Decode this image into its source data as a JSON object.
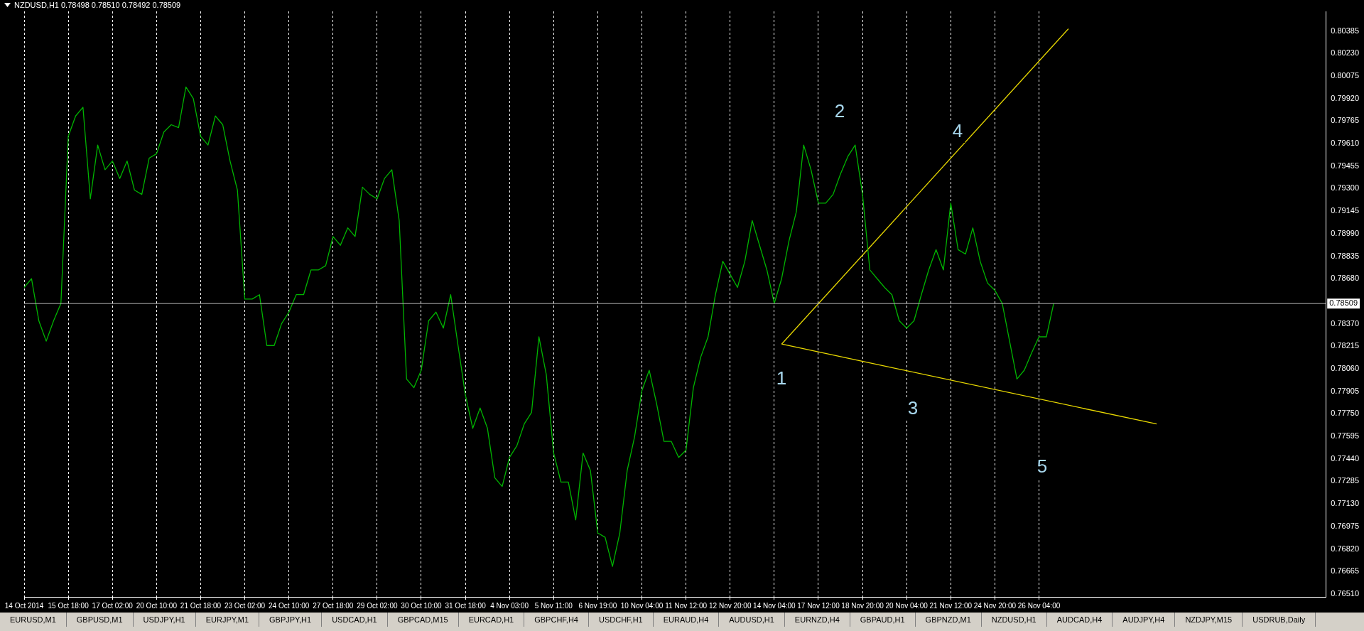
{
  "chart_data": {
    "type": "line",
    "title": "NZDUSD,H1  0.78498 0.78510 0.78492 0.78509",
    "categories": [
      "14 Oct 2014",
      null,
      null,
      null,
      null,
      null,
      "15 Oct 18:00",
      null,
      null,
      null,
      null,
      null,
      "17 Oct 02:00",
      null,
      null,
      null,
      null,
      null,
      "20 Oct 10:00",
      null,
      null,
      null,
      null,
      null,
      "21 Oct 18:00",
      null,
      null,
      null,
      null,
      null,
      "23 Oct 02:00",
      null,
      null,
      null,
      null,
      null,
      "24 Oct 10:00",
      null,
      null,
      null,
      null,
      null,
      "27 Oct 18:00",
      null,
      null,
      null,
      null,
      null,
      "29 Oct 02:00",
      null,
      null,
      null,
      null,
      null,
      "30 Oct 10:00",
      null,
      null,
      null,
      null,
      null,
      "31 Oct 18:00",
      null,
      null,
      null,
      null,
      null,
      "4 Nov 03:00",
      null,
      null,
      null,
      null,
      null,
      "5 Nov 11:00",
      null,
      null,
      null,
      null,
      null,
      "6 Nov 19:00",
      null,
      null,
      null,
      null,
      null,
      "10 Nov 04:00",
      null,
      null,
      null,
      null,
      null,
      "11 Nov 12:00",
      null,
      null,
      null,
      null,
      null,
      "12 Nov 20:00",
      null,
      null,
      null,
      null,
      null,
      "14 Nov 04:00",
      null,
      null,
      null,
      null,
      null,
      "17 Nov 12:00",
      null,
      null,
      null,
      null,
      null,
      "18 Nov 20:00",
      null,
      null,
      null,
      null,
      null,
      "20 Nov 04:00",
      null,
      null,
      null,
      null,
      null,
      "21 Nov 12:00",
      null,
      null,
      null,
      null,
      null,
      "24 Nov 20:00",
      null,
      null,
      null,
      null,
      null,
      "26 Nov 04:00",
      null,
      null,
      null,
      null,
      null,
      null,
      null,
      null,
      null,
      null,
      null,
      null,
      null,
      null,
      null,
      null,
      null,
      null,
      null,
      null,
      null,
      null,
      null,
      null,
      null,
      null,
      null,
      null,
      null,
      null,
      null,
      null,
      null,
      null,
      null,
      null,
      null,
      null,
      null
    ],
    "series": [
      {
        "color": "#00b400",
        "values": [
          0.7862,
          0.7868,
          0.7839,
          0.7825,
          0.7839,
          0.7851,
          0.7966,
          0.798,
          0.7986,
          0.7923,
          0.796,
          0.7943,
          0.7949,
          0.7937,
          0.7949,
          0.7929,
          0.7926,
          0.7951,
          0.7954,
          0.7969,
          0.7974,
          0.7972,
          0.8,
          0.7992,
          0.7966,
          0.796,
          0.798,
          0.7974,
          0.7949,
          0.7929,
          0.7854,
          0.7854,
          0.7857,
          0.7822,
          0.7822,
          0.7837,
          0.7845,
          0.7857,
          0.7857,
          0.7874,
          0.7874,
          0.7877,
          0.7897,
          0.7891,
          0.7903,
          0.7897,
          0.7931,
          0.7926,
          0.7923,
          0.7937,
          0.7943,
          0.7908,
          0.7799,
          0.7793,
          0.7805,
          0.7839,
          0.7845,
          0.7834,
          0.7857,
          0.7822,
          0.7788,
          0.7765,
          0.7779,
          0.7765,
          0.7731,
          0.7725,
          0.7745,
          0.7753,
          0.7768,
          0.7776,
          0.7828,
          0.7802,
          0.7748,
          0.7728,
          0.7728,
          0.7702,
          0.7748,
          0.7736,
          0.7693,
          0.769,
          0.767,
          0.7693,
          0.7736,
          0.7759,
          0.7791,
          0.7805,
          0.7782,
          0.7756,
          0.7756,
          0.7745,
          0.775,
          0.7793,
          0.7814,
          0.7828,
          0.7857,
          0.788,
          0.7871,
          0.7862,
          0.788,
          0.7908,
          0.7891,
          0.7874,
          0.7851,
          0.7868,
          0.7894,
          0.7914,
          0.796,
          0.7943,
          0.792,
          0.792,
          0.7926,
          0.794,
          0.7952,
          0.796,
          0.7926,
          0.7874,
          0.7868,
          0.7862,
          0.7857,
          0.7839,
          0.7834,
          0.7839,
          0.7857,
          0.7874,
          0.7888,
          0.7874,
          0.792,
          0.7888,
          0.7885,
          0.7903,
          0.788,
          0.7865,
          0.786,
          0.7851,
          0.7825,
          0.7799,
          0.7805,
          0.7817,
          0.7828,
          0.7828,
          0.7851,
          null,
          null,
          null,
          null,
          null,
          null,
          null,
          null,
          null,
          null,
          null,
          null,
          null,
          null,
          null,
          null,
          null,
          null,
          null,
          null,
          null,
          null,
          null,
          null,
          null,
          null,
          null,
          null,
          null,
          null,
          null,
          null,
          null,
          null,
          null,
          null,
          null
        ]
      },
      {
        "color": "#e8d800",
        "values": [
          null,
          null,
          null,
          null,
          null,
          null,
          null,
          null,
          null,
          null,
          null,
          null,
          null,
          null,
          null,
          null,
          null,
          null,
          null,
          null,
          null,
          null,
          null,
          null,
          null,
          null,
          null,
          null,
          null,
          null,
          null,
          null,
          null,
          null,
          null,
          null,
          null,
          null,
          null,
          null,
          null,
          null,
          null,
          null,
          null,
          null,
          null,
          null,
          null,
          null,
          null,
          null,
          null,
          null,
          null,
          null,
          null,
          null,
          null,
          null,
          null,
          null,
          null,
          null,
          null,
          null,
          null,
          null,
          null,
          null,
          null,
          null,
          null,
          null,
          null,
          null,
          null,
          null,
          null,
          null,
          null,
          null,
          null,
          null,
          null,
          null,
          null,
          null,
          null,
          null,
          null,
          null,
          null,
          null,
          null,
          null,
          null,
          null,
          null,
          null,
          null,
          null,
          null,
          0.7823,
          null,
          null,
          null,
          null,
          null,
          null,
          null,
          null,
          null,
          null,
          null,
          null,
          null,
          null,
          null,
          null,
          null,
          null,
          null,
          null,
          null,
          null,
          null,
          null,
          null,
          null,
          null,
          null,
          null,
          null,
          null,
          null,
          null,
          null,
          null,
          null,
          null,
          null,
          0.804,
          null,
          null,
          null,
          null,
          null,
          null,
          null,
          null,
          null,
          null,
          null,
          null,
          null,
          null,
          null,
          null,
          null,
          null,
          null,
          null,
          null,
          null,
          null,
          null,
          null,
          null,
          null,
          null,
          null,
          null,
          null,
          null,
          null,
          null,
          null
        ]
      },
      {
        "color": "#e8d800",
        "values": [
          null,
          null,
          null,
          null,
          null,
          null,
          null,
          null,
          null,
          null,
          null,
          null,
          null,
          null,
          null,
          null,
          null,
          null,
          null,
          null,
          null,
          null,
          null,
          null,
          null,
          null,
          null,
          null,
          null,
          null,
          null,
          null,
          null,
          null,
          null,
          null,
          null,
          null,
          null,
          null,
          null,
          null,
          null,
          null,
          null,
          null,
          null,
          null,
          null,
          null,
          null,
          null,
          null,
          null,
          null,
          null,
          null,
          null,
          null,
          null,
          null,
          null,
          null,
          null,
          null,
          null,
          null,
          null,
          null,
          null,
          null,
          null,
          null,
          null,
          null,
          null,
          null,
          null,
          null,
          null,
          null,
          null,
          null,
          null,
          null,
          null,
          null,
          null,
          null,
          null,
          null,
          null,
          null,
          null,
          null,
          null,
          null,
          null,
          null,
          null,
          null,
          null,
          null,
          0.7823,
          null,
          null,
          null,
          null,
          null,
          null,
          null,
          null,
          null,
          null,
          null,
          null,
          null,
          null,
          null,
          null,
          null,
          null,
          null,
          null,
          null,
          null,
          null,
          null,
          null,
          null,
          null,
          null,
          null,
          null,
          null,
          null,
          null,
          null,
          null,
          null,
          null,
          null,
          null,
          null,
          null,
          null,
          null,
          null,
          null,
          null,
          null,
          null,
          null,
          null,
          0.7768,
          null,
          null,
          null,
          null,
          null,
          null,
          null,
          null,
          null,
          null,
          null,
          null,
          null,
          null,
          null,
          null,
          null,
          null,
          null,
          null,
          null,
          null,
          null
        ]
      }
    ],
    "ylim": [
      0.7649,
      0.8052
    ],
    "yticks": [
      {
        "value": 0.7651,
        "label": "0.76510"
      },
      0.76665,
      {
        "value": 0.7682,
        "label": "0.76820"
      },
      0.76975,
      {
        "value": 0.7713,
        "label": "0.77130"
      },
      0.77285,
      {
        "value": 0.7744,
        "label": "0.77440"
      },
      0.77595,
      {
        "value": 0.7775,
        "label": "0.77750"
      },
      0.77905,
      {
        "value": 0.7806,
        "label": "0.78060"
      },
      0.78215,
      {
        "value": 0.7837,
        "label": "0.78370"
      },
      {
        "value": 0.7868,
        "label": "0.78680"
      },
      0.78835,
      {
        "value": 0.7899,
        "label": "0.78990"
      },
      0.79145,
      {
        "value": 0.793,
        "label": "0.79300"
      },
      0.79455,
      {
        "value": 0.7961,
        "label": "0.79610"
      },
      0.79765,
      {
        "value": 0.7992,
        "label": "0.79920"
      },
      0.80075,
      {
        "value": 0.8023,
        "label": "0.80230"
      },
      0.80385
    ],
    "ref_lines": [
      {
        "axis": "y",
        "value": 0.78509,
        "label": "0.78509",
        "color": "#b4b4b4"
      }
    ],
    "annotations": [
      "1",
      "2",
      "3",
      "4",
      "5",
      "EURUSD,M1",
      "GBPUSD,M1",
      "USDJPY,H1",
      "EURJPY,M1",
      "GBPJPY,H1",
      "USDCAD,H1",
      "GBPCAD,M15",
      "EURCAD,H1",
      "GBPCHF,H4",
      "USDCHF,H1",
      "EURAUD,H4",
      "AUDUSD,H1",
      "EURNZD,H4",
      "GBPAUD,H1",
      "GBPNZD,M1",
      "NZDUSD,H1",
      "AUDCAD,H4",
      "AUDJPY,H4",
      "NZDJPY,M15",
      "USDRUB,Daily"
    ],
    "grid": "x",
    "legend": false,
    "marker": "none",
    "line_style": "solid"
  }
}
